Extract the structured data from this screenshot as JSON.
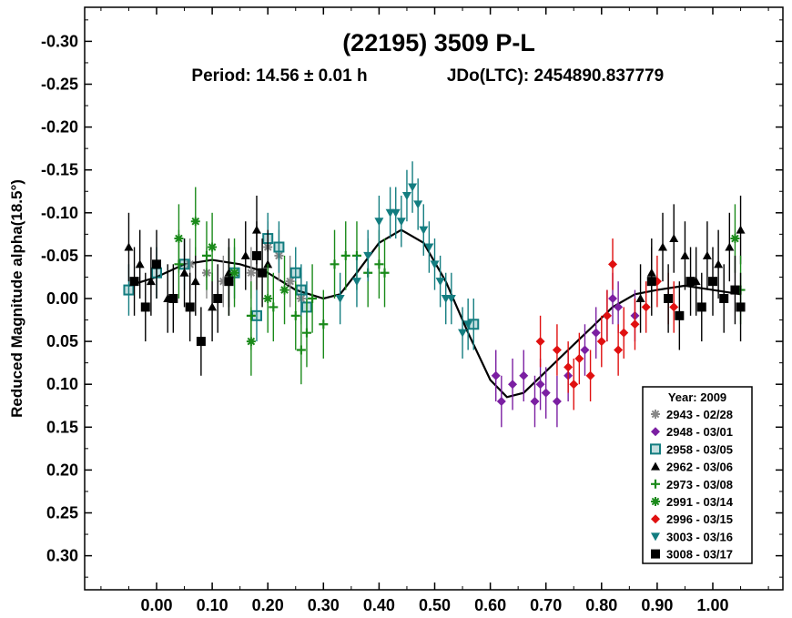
{
  "chart_data": {
    "type": "scatter",
    "title": "(22195) 3509 P-L",
    "period_label": "Period: 14.56 ± 0.01 h",
    "epoch_label": "JDo(LTC): 2454890.837779",
    "xlabel": "",
    "ylabel": "Reduced Magnitude alpha(18.5°)",
    "xlim": [
      -0.12,
      1.13
    ],
    "ylim": [
      0.34,
      -0.34
    ],
    "y_inverted": true,
    "x_ticks": [
      "0.00",
      "0.10",
      "0.20",
      "0.30",
      "0.40",
      "0.50",
      "0.60",
      "0.70",
      "0.80",
      "0.90",
      "1.00"
    ],
    "y_ticks": [
      "-0.30",
      "-0.25",
      "-0.20",
      "-0.15",
      "-0.10",
      "-0.05",
      "0.00",
      "0.05",
      "0.10",
      "0.15",
      "0.20",
      "0.25",
      "0.30"
    ],
    "legend": {
      "title": "Year: 2009",
      "position": "bottom-right",
      "entries": [
        {
          "label": "2943 - 02/28",
          "color": "#888888",
          "marker": "asterisk"
        },
        {
          "label": "2948 - 03/01",
          "color": "#7b1fa2",
          "marker": "diamond"
        },
        {
          "label": "2958 - 03/05",
          "color": "#137d80",
          "marker": "square-open"
        },
        {
          "label": "2962 - 03/06",
          "color": "#000000",
          "marker": "triangle"
        },
        {
          "label": "2973 - 03/08",
          "color": "#1a8a1a",
          "marker": "plus"
        },
        {
          "label": "2991 - 03/14",
          "color": "#1a8a1a",
          "marker": "asterisk"
        },
        {
          "label": "2996 - 03/15",
          "color": "#e01010",
          "marker": "diamond"
        },
        {
          "label": "3003 - 03/16",
          "color": "#137d80",
          "marker": "triangle-down"
        },
        {
          "label": "3008 - 03/17",
          "color": "#000000",
          "marker": "square"
        }
      ]
    },
    "fit_curve": {
      "color": "#000000",
      "points": [
        [
          -0.05,
          -0.015
        ],
        [
          0.0,
          -0.025
        ],
        [
          0.05,
          -0.04
        ],
        [
          0.1,
          -0.045
        ],
        [
          0.15,
          -0.04
        ],
        [
          0.2,
          -0.03
        ],
        [
          0.25,
          -0.01
        ],
        [
          0.3,
          0.0
        ],
        [
          0.33,
          -0.005
        ],
        [
          0.36,
          -0.03
        ],
        [
          0.4,
          -0.065
        ],
        [
          0.44,
          -0.08
        ],
        [
          0.48,
          -0.065
        ],
        [
          0.52,
          -0.02
        ],
        [
          0.56,
          0.04
        ],
        [
          0.6,
          0.095
        ],
        [
          0.63,
          0.115
        ],
        [
          0.66,
          0.11
        ],
        [
          0.7,
          0.085
        ],
        [
          0.74,
          0.06
        ],
        [
          0.78,
          0.035
        ],
        [
          0.82,
          0.01
        ],
        [
          0.86,
          -0.005
        ],
        [
          0.9,
          -0.01
        ],
        [
          0.95,
          -0.015
        ],
        [
          1.0,
          -0.01
        ],
        [
          1.05,
          -0.005
        ]
      ]
    },
    "series": [
      {
        "name": "2943 - 02/28",
        "marker": "asterisk",
        "color": "#888888",
        "points": [
          [
            0.06,
            -0.04,
            0.03
          ],
          [
            0.09,
            -0.03,
            0.03
          ],
          [
            0.12,
            -0.02,
            0.03
          ],
          [
            0.17,
            -0.03,
            0.03
          ],
          [
            0.2,
            -0.06,
            0.03
          ],
          [
            0.22,
            -0.05,
            0.03
          ],
          [
            0.24,
            -0.02,
            0.03
          ],
          [
            0.26,
            0.0,
            0.03
          ]
        ]
      },
      {
        "name": "2948 - 03/01",
        "marker": "diamond",
        "color": "#7b1fa2",
        "points": [
          [
            0.61,
            0.09,
            0.03
          ],
          [
            0.62,
            0.12,
            0.03
          ],
          [
            0.64,
            0.1,
            0.03
          ],
          [
            0.66,
            0.09,
            0.03
          ],
          [
            0.68,
            0.12,
            0.03
          ],
          [
            0.69,
            0.1,
            0.03
          ],
          [
            0.7,
            0.11,
            0.03
          ],
          [
            0.72,
            0.12,
            0.03
          ],
          [
            0.74,
            0.09,
            0.03
          ],
          [
            0.77,
            0.06,
            0.03
          ],
          [
            0.79,
            0.04,
            0.03
          ],
          [
            0.81,
            0.02,
            0.03
          ],
          [
            0.82,
            0.0,
            0.03
          ],
          [
            0.83,
            0.01,
            0.03
          ],
          [
            0.86,
            0.02,
            0.03
          ]
        ]
      },
      {
        "name": "2958 - 03/05",
        "marker": "square-open",
        "color": "#137d80",
        "points": [
          [
            -0.05,
            -0.01,
            0.03
          ],
          [
            0.0,
            -0.03,
            0.03
          ],
          [
            0.05,
            -0.04,
            0.03
          ],
          [
            0.14,
            -0.03,
            0.03
          ],
          [
            0.18,
            0.02,
            0.03
          ],
          [
            0.2,
            -0.07,
            0.03
          ],
          [
            0.22,
            -0.06,
            0.03
          ],
          [
            0.25,
            -0.03,
            0.03
          ],
          [
            0.26,
            -0.01,
            0.03
          ],
          [
            0.27,
            0.01,
            0.03
          ],
          [
            0.57,
            0.03,
            0.03
          ]
        ]
      },
      {
        "name": "2962 - 03/06",
        "marker": "triangle",
        "color": "#000000",
        "points": [
          [
            -0.05,
            -0.06,
            0.04
          ],
          [
            -0.03,
            -0.04,
            0.04
          ],
          [
            -0.01,
            -0.02,
            0.04
          ],
          [
            0.02,
            0.0,
            0.04
          ],
          [
            0.05,
            -0.03,
            0.04
          ],
          [
            0.07,
            -0.02,
            0.04
          ],
          [
            0.1,
            0.01,
            0.04
          ],
          [
            0.13,
            -0.03,
            0.04
          ],
          [
            0.16,
            -0.05,
            0.04
          ],
          [
            0.18,
            -0.08,
            0.04
          ],
          [
            0.2,
            -0.04,
            0.04
          ],
          [
            0.87,
            0.0,
            0.04
          ],
          [
            0.89,
            -0.03,
            0.04
          ],
          [
            0.91,
            -0.06,
            0.04
          ],
          [
            0.93,
            -0.07,
            0.04
          ],
          [
            0.95,
            -0.05,
            0.04
          ],
          [
            0.97,
            -0.02,
            0.04
          ],
          [
            0.99,
            -0.05,
            0.04
          ],
          [
            1.01,
            -0.04,
            0.04
          ],
          [
            1.03,
            -0.06,
            0.04
          ],
          [
            1.05,
            -0.08,
            0.04
          ]
        ]
      },
      {
        "name": "2973 - 03/08",
        "marker": "plus",
        "color": "#1a8a1a",
        "points": [
          [
            0.04,
            -0.04,
            0.04
          ],
          [
            0.09,
            -0.05,
            0.04
          ],
          [
            0.13,
            -0.02,
            0.04
          ],
          [
            0.17,
            0.02,
            0.04
          ],
          [
            0.21,
            0.01,
            0.04
          ],
          [
            0.25,
            0.02,
            0.04
          ],
          [
            0.28,
            0.0,
            0.04
          ],
          [
            0.3,
            0.03,
            0.04
          ],
          [
            0.32,
            -0.04,
            0.04
          ],
          [
            0.34,
            -0.05,
            0.04
          ],
          [
            0.36,
            -0.05,
            0.04
          ],
          [
            0.38,
            -0.03,
            0.04
          ],
          [
            0.4,
            -0.04,
            0.04
          ],
          [
            0.41,
            -0.03,
            0.04
          ],
          [
            0.26,
            0.06,
            0.04
          ],
          [
            0.27,
            0.04,
            0.04
          ],
          [
            1.05,
            -0.01,
            0.04
          ]
        ]
      },
      {
        "name": "2991 - 03/14",
        "marker": "asterisk",
        "color": "#1a8a1a",
        "points": [
          [
            0.04,
            -0.07,
            0.04
          ],
          [
            0.07,
            -0.09,
            0.04
          ],
          [
            0.1,
            -0.06,
            0.04
          ],
          [
            0.14,
            -0.03,
            0.04
          ],
          [
            0.17,
            0.05,
            0.04
          ],
          [
            0.2,
            0.0,
            0.04
          ],
          [
            0.23,
            -0.01,
            0.04
          ],
          [
            1.04,
            -0.07,
            0.04
          ]
        ]
      },
      {
        "name": "2996 - 03/15",
        "marker": "diamond",
        "color": "#e01010",
        "points": [
          [
            0.69,
            0.05,
            0.03
          ],
          [
            0.72,
            0.06,
            0.03
          ],
          [
            0.74,
            0.08,
            0.03
          ],
          [
            0.75,
            0.1,
            0.03
          ],
          [
            0.76,
            0.07,
            0.03
          ],
          [
            0.78,
            0.09,
            0.03
          ],
          [
            0.8,
            0.05,
            0.03
          ],
          [
            0.81,
            0.02,
            0.03
          ],
          [
            0.83,
            0.06,
            0.03
          ],
          [
            0.84,
            0.04,
            0.03
          ],
          [
            0.86,
            0.03,
            0.03
          ],
          [
            0.88,
            0.01,
            0.03
          ],
          [
            0.9,
            -0.02,
            0.03
          ],
          [
            0.92,
            0.0,
            0.03
          ],
          [
            0.93,
            0.01,
            0.03
          ],
          [
            0.82,
            -0.04,
            0.03
          ]
        ]
      },
      {
        "name": "3003 - 03/16",
        "marker": "triangle-down",
        "color": "#137d80",
        "points": [
          [
            0.33,
            0.0,
            0.03
          ],
          [
            0.36,
            -0.02,
            0.03
          ],
          [
            0.38,
            -0.05,
            0.03
          ],
          [
            0.4,
            -0.09,
            0.03
          ],
          [
            0.42,
            -0.1,
            0.03
          ],
          [
            0.43,
            -0.1,
            0.03
          ],
          [
            0.44,
            -0.09,
            0.03
          ],
          [
            0.45,
            -0.12,
            0.03
          ],
          [
            0.46,
            -0.13,
            0.03
          ],
          [
            0.47,
            -0.11,
            0.03
          ],
          [
            0.48,
            -0.08,
            0.03
          ],
          [
            0.49,
            -0.06,
            0.03
          ],
          [
            0.5,
            -0.04,
            0.03
          ],
          [
            0.51,
            -0.02,
            0.03
          ],
          [
            0.52,
            0.0,
            0.03
          ],
          [
            0.53,
            0.0,
            0.03
          ],
          [
            0.55,
            0.04,
            0.03
          ],
          [
            0.56,
            0.03,
            0.03
          ]
        ]
      },
      {
        "name": "3008 - 03/17",
        "marker": "square",
        "color": "#000000",
        "points": [
          [
            -0.04,
            -0.02,
            0.04
          ],
          [
            -0.02,
            0.01,
            0.04
          ],
          [
            0.0,
            -0.04,
            0.04
          ],
          [
            0.03,
            0.0,
            0.04
          ],
          [
            0.06,
            0.01,
            0.04
          ],
          [
            0.08,
            0.05,
            0.04
          ],
          [
            0.11,
            0.0,
            0.04
          ],
          [
            0.13,
            -0.02,
            0.04
          ],
          [
            0.18,
            -0.05,
            0.04
          ],
          [
            0.19,
            -0.03,
            0.04
          ],
          [
            0.89,
            -0.02,
            0.04
          ],
          [
            0.92,
            0.0,
            0.04
          ],
          [
            0.94,
            0.02,
            0.04
          ],
          [
            0.96,
            -0.02,
            0.04
          ],
          [
            0.98,
            0.01,
            0.04
          ],
          [
            1.0,
            -0.02,
            0.04
          ],
          [
            1.02,
            0.0,
            0.04
          ],
          [
            1.04,
            -0.01,
            0.04
          ],
          [
            1.05,
            0.01,
            0.04
          ]
        ]
      }
    ]
  }
}
